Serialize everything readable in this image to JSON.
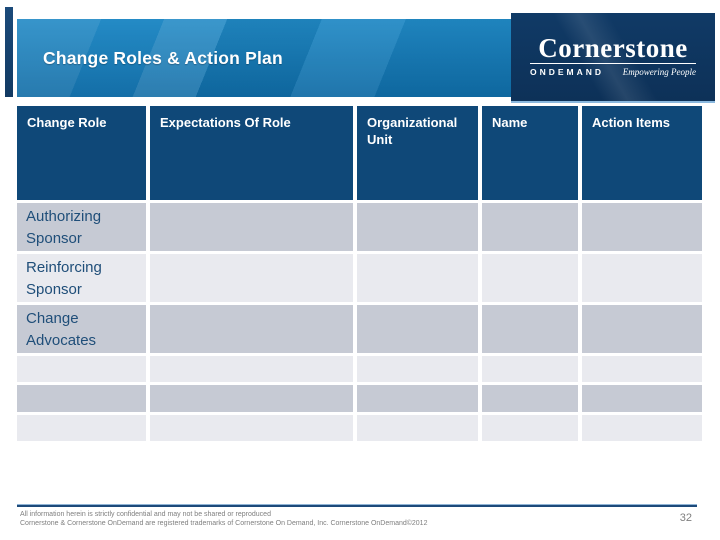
{
  "slide": {
    "title": "Change Roles & Action Plan",
    "page_number": "32"
  },
  "logo": {
    "brand": "Cornerstone",
    "sub_brand": "ONDEMAND",
    "tagline": "Empowering People"
  },
  "table": {
    "columns": [
      "Change Role",
      "Expectations Of Role",
      "Organizational Unit",
      "Name",
      "Action Items"
    ],
    "rows": [
      {
        "label": "Authorizing Sponsor",
        "expectations": "",
        "org_unit": "",
        "name": "",
        "action_items": ""
      },
      {
        "label": "Reinforcing Sponsor",
        "expectations": "",
        "org_unit": "",
        "name": "",
        "action_items": ""
      },
      {
        "label": "Change Advocates",
        "expectations": "",
        "org_unit": "",
        "name": "",
        "action_items": ""
      },
      {
        "label": "",
        "expectations": "",
        "org_unit": "",
        "name": "",
        "action_items": ""
      },
      {
        "label": "",
        "expectations": "",
        "org_unit": "",
        "name": "",
        "action_items": ""
      },
      {
        "label": "",
        "expectations": "",
        "org_unit": "",
        "name": "",
        "action_items": ""
      }
    ]
  },
  "footer": {
    "line1": "All information herein is strictly confidential and may not be shared or reproduced",
    "line2": "Cornerstone & Cornerstone OnDemand are registered trademarks of Cornerstone On Demand, Inc. Cornerstone OnDemand©2012"
  },
  "colors": {
    "banner_blue": "#1a80bc",
    "logo_navy": "#0e355f",
    "header_navy": "#0f4878",
    "row_dark": "#c6cad4",
    "row_light": "#e9eaef",
    "row_text_navy": "#1f4e79",
    "footer_gray": "#7f7f7f"
  }
}
